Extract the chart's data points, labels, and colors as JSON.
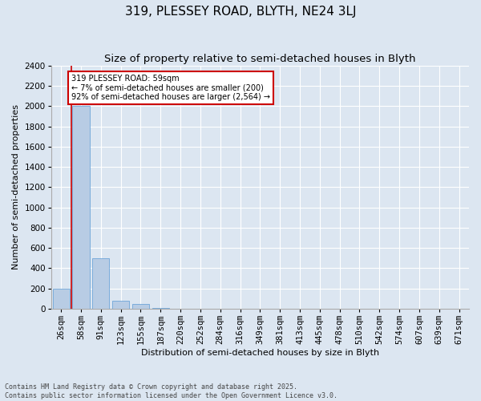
{
  "title": "319, PLESSEY ROAD, BLYTH, NE24 3LJ",
  "subtitle": "Size of property relative to semi-detached houses in Blyth",
  "xlabel": "Distribution of semi-detached houses by size in Blyth",
  "ylabel": "Number of semi-detached properties",
  "categories": [
    "26sqm",
    "58sqm",
    "91sqm",
    "123sqm",
    "155sqm",
    "187sqm",
    "220sqm",
    "252sqm",
    "284sqm",
    "316sqm",
    "349sqm",
    "381sqm",
    "413sqm",
    "445sqm",
    "478sqm",
    "510sqm",
    "542sqm",
    "574sqm",
    "607sqm",
    "639sqm",
    "671sqm"
  ],
  "values": [
    200,
    2000,
    500,
    80,
    50,
    5,
    2,
    1,
    1,
    0,
    0,
    0,
    0,
    0,
    0,
    0,
    0,
    0,
    0,
    0,
    0
  ],
  "bar_color": "#b8cce4",
  "bar_edge_color": "#5b9bd5",
  "property_line_x": 0.5,
  "annotation_text": "319 PLESSEY ROAD: 59sqm\n← 7% of semi-detached houses are smaller (200)\n92% of semi-detached houses are larger (2,564) →",
  "ylim": [
    0,
    2400
  ],
  "yticks": [
    0,
    200,
    400,
    600,
    800,
    1000,
    1200,
    1400,
    1600,
    1800,
    2000,
    2200,
    2400
  ],
  "fig_background": "#dce6f1",
  "plot_background": "#dce6f1",
  "grid_color": "#ffffff",
  "title_fontsize": 11,
  "subtitle_fontsize": 9.5,
  "axis_label_fontsize": 8,
  "tick_fontsize": 7.5,
  "annotation_fontsize": 7,
  "annotation_box_color": "#ffffff",
  "annotation_box_edge": "#cc0000",
  "vline_color": "#cc0000",
  "footer": "Contains HM Land Registry data © Crown copyright and database right 2025.\nContains public sector information licensed under the Open Government Licence v3.0."
}
